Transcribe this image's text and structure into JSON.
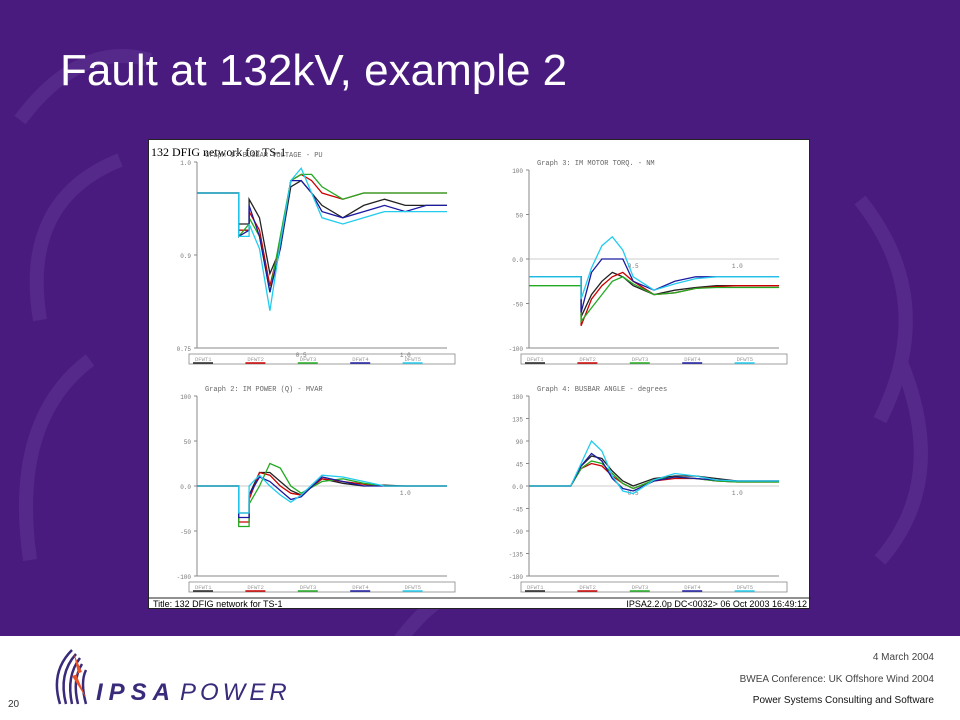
{
  "slide": {
    "title": "Fault at 132kV, example 2",
    "number": "20",
    "date": "4 March 2004",
    "conference": "BWEA Conference: UK Offshore Wind 2004",
    "company": "Power Systems Consulting and Software",
    "logo_text": "IPSAPOWER",
    "bg_color": "#4a1b7e"
  },
  "figure": {
    "header_title": "132 DFIG network for TS-1",
    "footer_title": "Title:  132 DFIG network for TS-1",
    "footer_info": "IPSA2.2.0p DC<0032>  06 Oct 2003 16:49:12",
    "series_colors": [
      "#222222",
      "#cc0000",
      "#22aa22",
      "#1a1aa0",
      "#22ccee"
    ]
  },
  "chart_data": [
    {
      "type": "line",
      "title": "Graph 1: BUSBAR VOLTAGE   - PU",
      "ylim": [
        0.75,
        1.05
      ],
      "yticks": [
        "1.0",
        "0.9",
        "0.75"
      ],
      "xticks": [
        "0.5",
        "1.0"
      ],
      "legend": [
        "DFWT1",
        "DFWT2",
        "DFWT3",
        "DFWT4",
        "DFWT5"
      ],
      "x": [
        0,
        0.15,
        0.2,
        0.2,
        0.25,
        0.25,
        0.3,
        0.35,
        0.4,
        0.45,
        0.5,
        0.55,
        0.6,
        0.7,
        0.8,
        0.9,
        1.0,
        1.1,
        1.2
      ],
      "series": [
        {
          "values": [
            1.0,
            1.0,
            1.0,
            0.95,
            0.95,
            0.99,
            0.96,
            0.87,
            0.91,
            1.01,
            1.02,
            1.0,
            0.98,
            0.96,
            0.98,
            0.99,
            0.98,
            0.98,
            0.98
          ]
        },
        {
          "values": [
            1.0,
            1.0,
            1.0,
            0.94,
            0.94,
            0.97,
            0.94,
            0.85,
            0.92,
            1.02,
            1.03,
            1.02,
            1.0,
            0.99,
            1.0,
            1.0,
            1.0,
            1.0,
            1.0
          ]
        },
        {
          "values": [
            1.0,
            1.0,
            1.0,
            0.93,
            0.95,
            0.96,
            0.93,
            0.84,
            0.93,
            1.02,
            1.03,
            1.03,
            1.01,
            0.99,
            1.0,
            1.0,
            1.0,
            1.0,
            1.0
          ]
        },
        {
          "values": [
            1.0,
            1.0,
            1.0,
            0.93,
            0.94,
            0.98,
            0.93,
            0.84,
            0.91,
            1.02,
            1.02,
            1.0,
            0.97,
            0.96,
            0.97,
            0.98,
            0.97,
            0.98,
            0.98
          ]
        },
        {
          "values": [
            1.0,
            1.0,
            1.0,
            0.93,
            0.93,
            0.95,
            0.91,
            0.81,
            0.92,
            1.02,
            1.04,
            1.0,
            0.96,
            0.95,
            0.96,
            0.97,
            0.97,
            0.97,
            0.97
          ]
        }
      ]
    },
    {
      "type": "line",
      "title": "Graph 3: IM MOTOR TORQ.   - NM",
      "ylim": [
        -100,
        100
      ],
      "yticks": [
        "100",
        "50",
        "0.0",
        "-50",
        "-100"
      ],
      "xticks": [
        "0.5",
        "1.0"
      ],
      "legend": [
        "DFWT1",
        "DFWT2",
        "DFWT3",
        "DFWT4",
        "DFWT5"
      ],
      "x": [
        0,
        0.2,
        0.2,
        0.25,
        0.25,
        0.3,
        0.35,
        0.4,
        0.45,
        0.5,
        0.6,
        0.7,
        0.8,
        0.9,
        1.0,
        1.2
      ],
      "series": [
        {
          "values": [
            -20,
            -20,
            -20,
            -20,
            -65,
            -40,
            -25,
            -15,
            -20,
            -30,
            -40,
            -35,
            -32,
            -30,
            -30,
            -30
          ]
        },
        {
          "values": [
            -20,
            -20,
            -20,
            -20,
            -75,
            -45,
            -30,
            -20,
            -15,
            -25,
            -40,
            -38,
            -33,
            -31,
            -30,
            -30
          ]
        },
        {
          "values": [
            -30,
            -30,
            -30,
            -30,
            -70,
            -55,
            -40,
            -25,
            -20,
            -28,
            -40,
            -38,
            -33,
            -32,
            -32,
            -32
          ]
        },
        {
          "values": [
            -20,
            -20,
            -20,
            -20,
            -60,
            -15,
            0,
            0,
            0,
            -25,
            -35,
            -25,
            -20,
            -20,
            -20,
            -20
          ]
        },
        {
          "values": [
            -20,
            -20,
            -20,
            -20,
            -45,
            -10,
            15,
            25,
            10,
            -20,
            -35,
            -28,
            -22,
            -20,
            -20,
            -20
          ]
        }
      ]
    },
    {
      "type": "line",
      "title": "Graph 2: IM POWER (Q)   - MVAR",
      "ylim": [
        -100,
        100
      ],
      "yticks": [
        "100",
        "50",
        "0.0",
        "-50",
        "-100"
      ],
      "xticks": [
        "1.0"
      ],
      "legend": [
        "DFWT1",
        "DFWT2",
        "DFWT3",
        "DFWT4",
        "DFWT5"
      ],
      "x": [
        0,
        0.2,
        0.2,
        0.25,
        0.25,
        0.3,
        0.35,
        0.4,
        0.45,
        0.5,
        0.6,
        0.7,
        0.8,
        0.9,
        1.0,
        1.2
      ],
      "series": [
        {
          "values": [
            0,
            0,
            -30,
            -30,
            -10,
            15,
            15,
            5,
            -5,
            -10,
            8,
            3,
            0,
            1,
            0,
            0
          ]
        },
        {
          "values": [
            0,
            0,
            -40,
            -40,
            -15,
            15,
            12,
            0,
            -8,
            -10,
            8,
            5,
            2,
            0,
            0,
            0
          ]
        },
        {
          "values": [
            0,
            0,
            -45,
            -45,
            -20,
            0,
            25,
            20,
            0,
            -8,
            5,
            8,
            3,
            0,
            0,
            0
          ]
        },
        {
          "values": [
            0,
            0,
            -35,
            -35,
            -10,
            10,
            5,
            -5,
            -15,
            -12,
            10,
            5,
            0,
            0,
            0,
            0
          ]
        },
        {
          "values": [
            0,
            0,
            -30,
            -30,
            0,
            12,
            0,
            -10,
            -18,
            -10,
            12,
            10,
            5,
            0,
            0,
            0
          ]
        }
      ]
    },
    {
      "type": "line",
      "title": "Graph 4: BUSBAR ANGLE   - degrees",
      "ylim": [
        -180,
        180
      ],
      "yticks": [
        "180",
        "135",
        "90",
        "45",
        "0.0",
        "-45",
        "-90",
        "-135",
        "-180"
      ],
      "xticks": [
        "0.5",
        "1.0"
      ],
      "legend": [
        "DFWT1",
        "DFWT2",
        "DFWT3",
        "DFWT4",
        "DFWT5"
      ],
      "x": [
        0,
        0.2,
        0.25,
        0.3,
        0.35,
        0.4,
        0.45,
        0.5,
        0.6,
        0.7,
        0.8,
        0.9,
        1.0,
        1.2
      ],
      "series": [
        {
          "values": [
            0,
            0,
            40,
            60,
            55,
            30,
            10,
            0,
            15,
            20,
            20,
            15,
            10,
            10
          ]
        },
        {
          "values": [
            0,
            0,
            35,
            45,
            40,
            20,
            5,
            -5,
            10,
            15,
            15,
            10,
            8,
            8
          ]
        },
        {
          "values": [
            0,
            0,
            35,
            50,
            45,
            25,
            5,
            -5,
            12,
            18,
            15,
            10,
            8,
            8
          ]
        },
        {
          "values": [
            0,
            0,
            40,
            65,
            50,
            15,
            -5,
            -10,
            10,
            18,
            15,
            12,
            10,
            10
          ]
        },
        {
          "values": [
            0,
            0,
            45,
            90,
            70,
            20,
            -10,
            -15,
            12,
            25,
            20,
            12,
            10,
            10
          ]
        }
      ]
    }
  ]
}
